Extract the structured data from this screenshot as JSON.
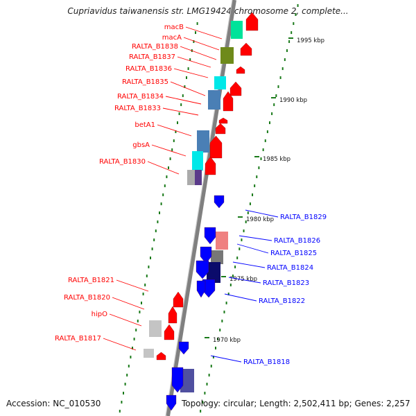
{
  "title": "Cupriavidus taiwanensis str. LMG19424 chromosome 2, complete...",
  "footer": {
    "accession": "Accession: NC_010530",
    "summary": "Topology: circular; Length: 2,502,411 bp; Genes: 2,257"
  },
  "colors": {
    "forward": "#ff0000",
    "reverse": "#0000ff",
    "backbone": "#808080",
    "tick": "#1a7a1a"
  },
  "kbp_ticks": [
    "1995 kbp",
    "1990 kbp",
    "1985 kbp",
    "1980 kbp",
    "1975 kbp",
    "1970 kbp"
  ],
  "left_labels": [
    "macB",
    "macA",
    "RALTA_B1838",
    "RALTA_B1837",
    "RALTA_B1836",
    "RALTA_B1835",
    "RALTA_B1834",
    "RALTA_B1833",
    "betA1",
    "gbsA",
    "RALTA_B1830",
    "RALTA_B1821",
    "RALTA_B1820",
    "hipO",
    "RALTA_B1817"
  ],
  "right_labels": [
    "RALTA_B1829",
    "RALTA_B1826",
    "RALTA_B1825",
    "RALTA_B1824",
    "RALTA_B1823",
    "RALTA_B1822",
    "RALTA_B1818"
  ]
}
